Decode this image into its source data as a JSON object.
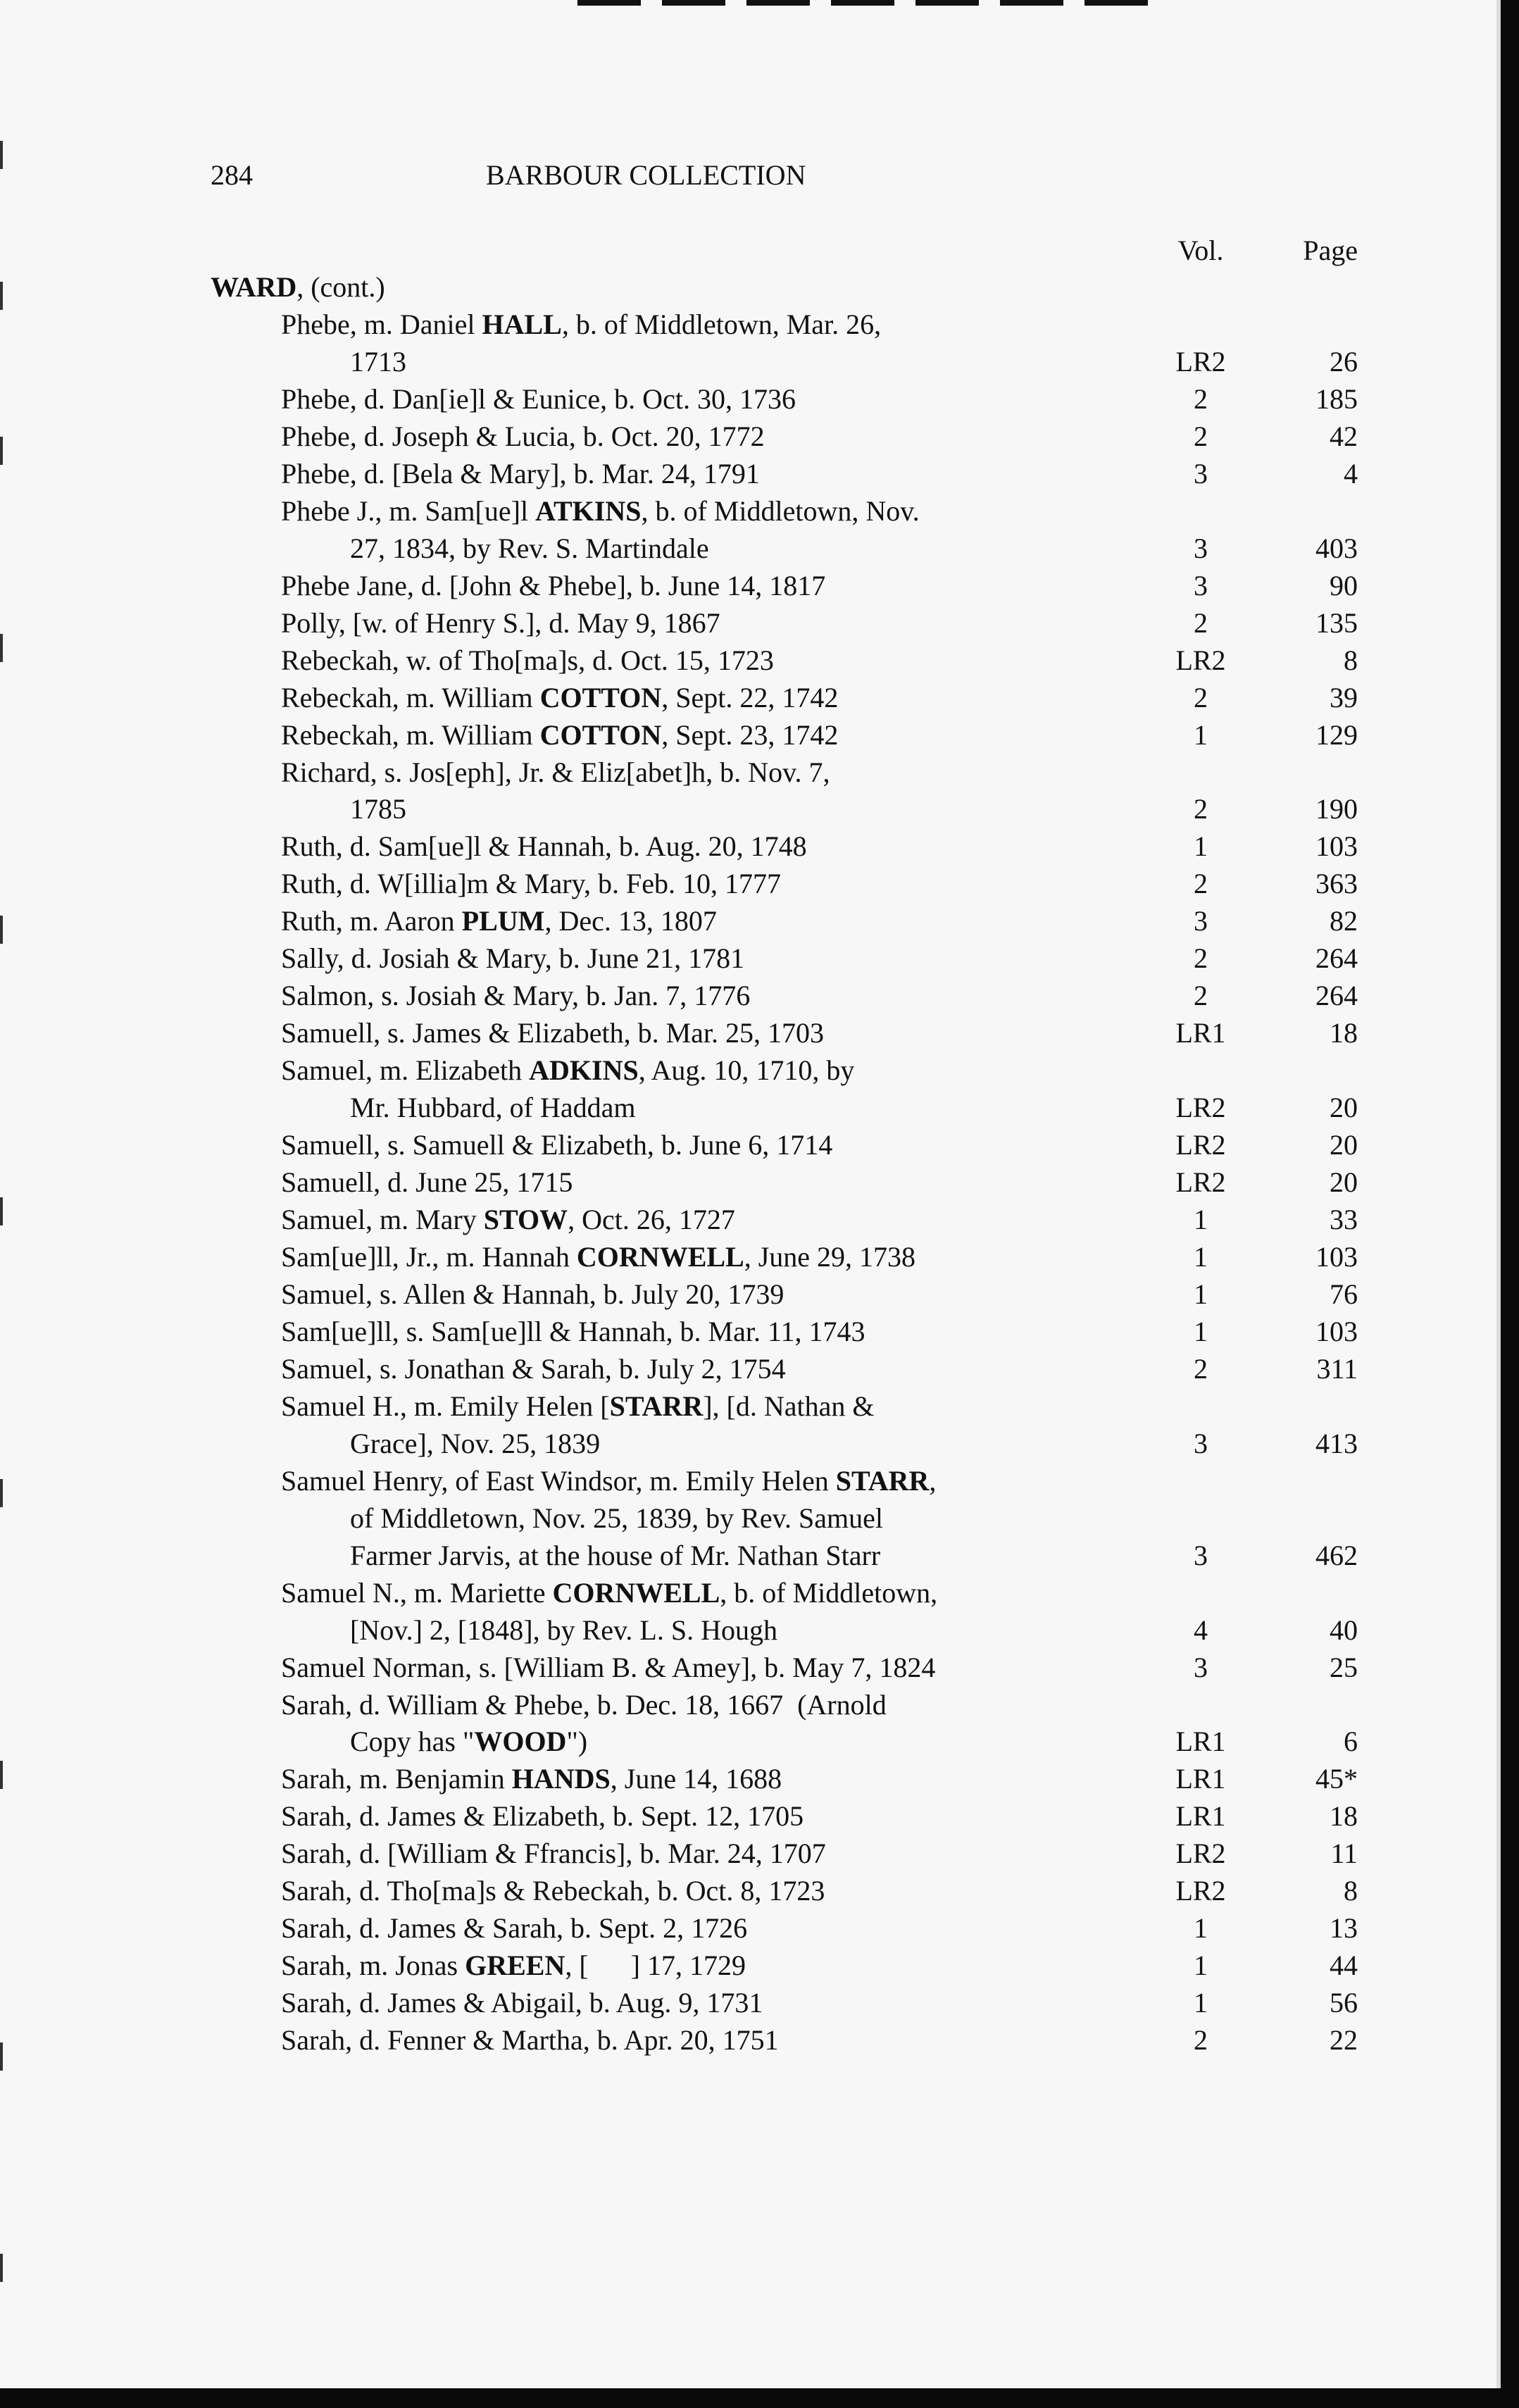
{
  "header": {
    "page_number": "284",
    "title": "BARBOUR COLLECTION"
  },
  "columns": {
    "vol": "Vol.",
    "page": "Page"
  },
  "surname": {
    "name": "WARD",
    "suffix": ", (cont.)"
  },
  "entries": [
    {
      "lines": [
        [
          "Phebe, m. Daniel ",
          {
            "b": "HALL"
          },
          ", b. of Middletown, Mar. 26,"
        ],
        [
          "1713"
        ]
      ],
      "vol": "LR2",
      "page": "26"
    },
    {
      "lines": [
        [
          "Phebe, d. Dan[ie]l & Eunice, b. Oct. 30, 1736"
        ]
      ],
      "vol": "2",
      "page": "185"
    },
    {
      "lines": [
        [
          "Phebe, d. Joseph & Lucia, b. Oct. 20, 1772"
        ]
      ],
      "vol": "2",
      "page": "42"
    },
    {
      "lines": [
        [
          "Phebe, d. [Bela & Mary], b. Mar. 24, 1791"
        ]
      ],
      "vol": "3",
      "page": "4"
    },
    {
      "lines": [
        [
          "Phebe J., m. Sam[ue]l ",
          {
            "b": "ATKINS"
          },
          ", b. of Middletown, Nov."
        ],
        [
          "27, 1834, by Rev. S. Martindale"
        ]
      ],
      "vol": "3",
      "page": "403"
    },
    {
      "lines": [
        [
          "Phebe Jane, d. [John & Phebe], b. June 14, 1817"
        ]
      ],
      "vol": "3",
      "page": "90"
    },
    {
      "lines": [
        [
          "Polly, [w. of Henry S.], d. May 9, 1867"
        ]
      ],
      "vol": "2",
      "page": "135"
    },
    {
      "lines": [
        [
          "Rebeckah, w. of Tho[ma]s, d. Oct. 15, 1723"
        ]
      ],
      "vol": "LR2",
      "page": "8"
    },
    {
      "lines": [
        [
          "Rebeckah, m. William ",
          {
            "b": "COTTON"
          },
          ", Sept. 22, 1742"
        ]
      ],
      "vol": "2",
      "page": "39"
    },
    {
      "lines": [
        [
          "Rebeckah, m. William ",
          {
            "b": "COTTON"
          },
          ", Sept. 23, 1742"
        ]
      ],
      "vol": "1",
      "page": "129"
    },
    {
      "lines": [
        [
          "Richard, s. Jos[eph], Jr. & Eliz[abet]h, b. Nov. 7,"
        ],
        [
          "1785"
        ]
      ],
      "vol": "2",
      "page": "190"
    },
    {
      "lines": [
        [
          "Ruth, d. Sam[ue]l & Hannah, b. Aug. 20, 1748"
        ]
      ],
      "vol": "1",
      "page": "103"
    },
    {
      "lines": [
        [
          "Ruth, d. W[illia]m & Mary, b. Feb. 10, 1777"
        ]
      ],
      "vol": "2",
      "page": "363"
    },
    {
      "lines": [
        [
          "Ruth, m. Aaron ",
          {
            "b": "PLUM"
          },
          ", Dec. 13, 1807"
        ]
      ],
      "vol": "3",
      "page": "82"
    },
    {
      "lines": [
        [
          "Sally, d. Josiah & Mary, b. June 21, 1781"
        ]
      ],
      "vol": "2",
      "page": "264"
    },
    {
      "lines": [
        [
          "Salmon, s. Josiah & Mary, b. Jan. 7, 1776"
        ]
      ],
      "vol": "2",
      "page": "264"
    },
    {
      "lines": [
        [
          "Samuell, s. James & Elizabeth, b. Mar. 25, 1703"
        ]
      ],
      "vol": "LR1",
      "page": "18"
    },
    {
      "lines": [
        [
          "Samuel, m. Elizabeth ",
          {
            "b": "ADKINS"
          },
          ", Aug. 10, 1710, by"
        ],
        [
          "Mr. Hubbard, of Haddam"
        ]
      ],
      "vol": "LR2",
      "page": "20"
    },
    {
      "lines": [
        [
          "Samuell, s. Samuell & Elizabeth, b. June 6, 1714"
        ]
      ],
      "vol": "LR2",
      "page": "20"
    },
    {
      "lines": [
        [
          "Samuell, d. June 25, 1715"
        ]
      ],
      "vol": "LR2",
      "page": "20"
    },
    {
      "lines": [
        [
          "Samuel, m. Mary ",
          {
            "b": "STOW"
          },
          ", Oct. 26, 1727"
        ]
      ],
      "vol": "1",
      "page": "33"
    },
    {
      "lines": [
        [
          "Sam[ue]ll, Jr., m. Hannah ",
          {
            "b": "CORNWELL"
          },
          ", June 29, 1738"
        ]
      ],
      "vol": "1",
      "page": "103"
    },
    {
      "lines": [
        [
          "Samuel, s. Allen & Hannah, b. July 20, 1739"
        ]
      ],
      "vol": "1",
      "page": "76"
    },
    {
      "lines": [
        [
          "Sam[ue]ll, s. Sam[ue]ll & Hannah, b. Mar. 11, 1743"
        ]
      ],
      "vol": "1",
      "page": "103"
    },
    {
      "lines": [
        [
          "Samuel, s. Jonathan & Sarah, b. July 2, 1754"
        ]
      ],
      "vol": "2",
      "page": "311"
    },
    {
      "lines": [
        [
          "Samuel H., m. Emily Helen [",
          {
            "b": "STARR"
          },
          "], [d. Nathan &"
        ],
        [
          "Grace], Nov. 25, 1839"
        ]
      ],
      "vol": "3",
      "page": "413"
    },
    {
      "lines": [
        [
          "Samuel Henry, of East Windsor, m. Emily Helen ",
          {
            "b": "STARR"
          },
          ","
        ],
        [
          "of Middletown, Nov. 25, 1839, by Rev. Samuel"
        ],
        [
          "Farmer Jarvis, at the house of Mr. Nathan Starr"
        ]
      ],
      "vol": "3",
      "page": "462"
    },
    {
      "lines": [
        [
          "Samuel N., m. Mariette ",
          {
            "b": "CORNWELL"
          },
          ", b. of Middletown,"
        ],
        [
          "[Nov.] 2, [1848], by Rev. L. S. Hough"
        ]
      ],
      "vol": "4",
      "page": "40"
    },
    {
      "lines": [
        [
          "Samuel Norman, s. [William B. & Amey], b. May 7, 1824"
        ]
      ],
      "vol": "3",
      "page": "25"
    },
    {
      "lines": [
        [
          "Sarah, d. William & Phebe, b. Dec. 18, 1667  (Arnold"
        ],
        [
          "Copy has \"",
          {
            "b": "WOOD"
          },
          "\")"
        ]
      ],
      "vol": "LR1",
      "page": "6"
    },
    {
      "lines": [
        [
          "Sarah, m. Benjamin ",
          {
            "b": "HANDS"
          },
          ", June 14, 1688"
        ]
      ],
      "vol": "LR1",
      "page": "45*"
    },
    {
      "lines": [
        [
          "Sarah, d. James & Elizabeth, b. Sept. 12, 1705"
        ]
      ],
      "vol": "LR1",
      "page": "18"
    },
    {
      "lines": [
        [
          "Sarah, d. [William & Ffrancis], b. Mar. 24, 1707"
        ]
      ],
      "vol": "LR2",
      "page": "11"
    },
    {
      "lines": [
        [
          "Sarah, d. Tho[ma]s & Rebeckah, b. Oct. 8, 1723"
        ]
      ],
      "vol": "LR2",
      "page": "8"
    },
    {
      "lines": [
        [
          "Sarah, d. James & Sarah, b. Sept. 2, 1726"
        ]
      ],
      "vol": "1",
      "page": "13"
    },
    {
      "lines": [
        [
          "Sarah, m. Jonas ",
          {
            "b": "GREEN"
          },
          ", [      ] 17, 1729"
        ]
      ],
      "vol": "1",
      "page": "44"
    },
    {
      "lines": [
        [
          "Sarah, d. James & Abigail, b. Aug. 9, 1731"
        ]
      ],
      "vol": "1",
      "page": "56"
    },
    {
      "lines": [
        [
          "Sarah, d. Fenner & Martha, b. Apr. 20, 1751"
        ]
      ],
      "vol": "2",
      "page": "22"
    }
  ]
}
